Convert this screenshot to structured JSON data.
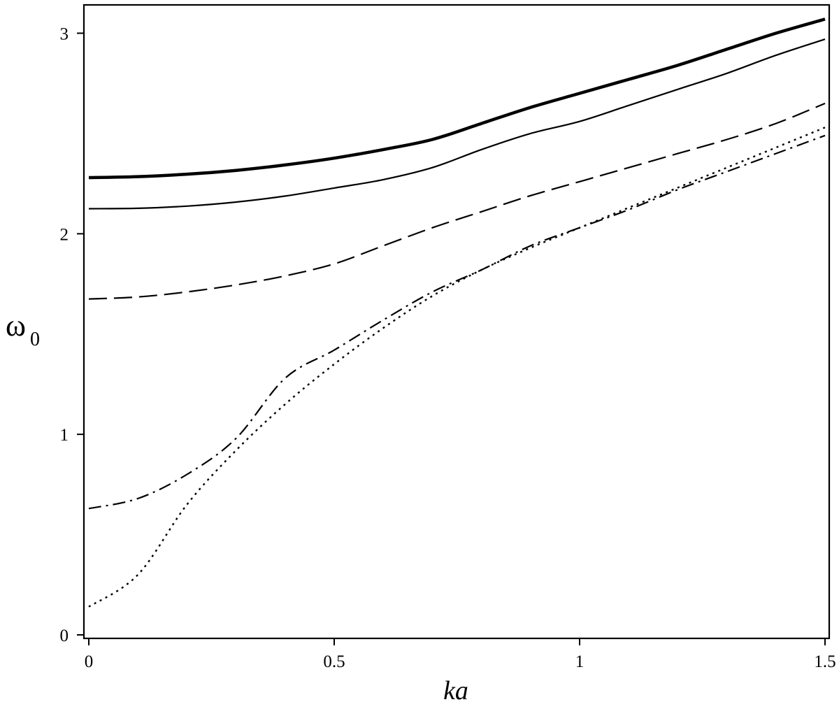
{
  "chart_data": {
    "type": "line",
    "title": "",
    "xlabel": "ka",
    "ylabel": "ω",
    "ylabel_subscript": "0",
    "xlim": [
      0,
      1.5
    ],
    "ylim": [
      0,
      3.13
    ],
    "xticks": [
      {
        "value": 0,
        "label": "0"
      },
      {
        "value": 0.5,
        "label": "0.5"
      },
      {
        "value": 1,
        "label": "1"
      },
      {
        "value": 1.5,
        "label": "1.5"
      }
    ],
    "yticks": [
      {
        "value": 0,
        "label": "0"
      },
      {
        "value": 1,
        "label": "1"
      },
      {
        "value": 2,
        "label": "2"
      },
      {
        "value": 3,
        "label": "3"
      }
    ],
    "grid": false,
    "legend": "none",
    "series": [
      {
        "style": "thick-solid",
        "x": [
          0.0,
          0.1,
          0.2,
          0.3,
          0.4,
          0.5,
          0.6,
          0.7,
          0.8,
          0.9,
          1.0,
          1.1,
          1.2,
          1.3,
          1.4,
          1.5
        ],
        "y": [
          2.28,
          2.285,
          2.297,
          2.316,
          2.343,
          2.377,
          2.42,
          2.47,
          2.55,
          2.63,
          2.7,
          2.77,
          2.84,
          2.92,
          3.0,
          3.07
        ]
      },
      {
        "style": "thin-solid",
        "x": [
          0.0,
          0.1,
          0.2,
          0.3,
          0.4,
          0.5,
          0.6,
          0.7,
          0.8,
          0.9,
          1.0,
          1.1,
          1.2,
          1.3,
          1.4,
          1.5
        ],
        "y": [
          2.125,
          2.127,
          2.138,
          2.158,
          2.188,
          2.228,
          2.27,
          2.33,
          2.42,
          2.5,
          2.56,
          2.64,
          2.72,
          2.8,
          2.89,
          2.97
        ]
      },
      {
        "style": "long-dash",
        "x": [
          0.0,
          0.1,
          0.2,
          0.3,
          0.4,
          0.5,
          0.6,
          0.7,
          0.8,
          0.9,
          1.0,
          1.1,
          1.2,
          1.3,
          1.4,
          1.5
        ],
        "y": [
          1.675,
          1.685,
          1.71,
          1.745,
          1.79,
          1.85,
          1.94,
          2.03,
          2.11,
          2.19,
          2.26,
          2.33,
          2.4,
          2.47,
          2.55,
          2.65
        ]
      },
      {
        "style": "dash-dot",
        "x": [
          0.0,
          0.1,
          0.2,
          0.3,
          0.4,
          0.5,
          0.6,
          0.7,
          0.8,
          0.9,
          1.0,
          1.1,
          1.2,
          1.3,
          1.4,
          1.5
        ],
        "y": [
          0.63,
          0.68,
          0.8,
          0.98,
          1.28,
          1.42,
          1.57,
          1.71,
          1.82,
          1.94,
          2.03,
          2.12,
          2.22,
          2.31,
          2.4,
          2.49
        ]
      },
      {
        "style": "dotted",
        "x": [
          0.0,
          0.1,
          0.2,
          0.3,
          0.4,
          0.5,
          0.6,
          0.7,
          0.8,
          0.9,
          1.0,
          1.1,
          1.2,
          1.3,
          1.4,
          1.5
        ],
        "y": [
          0.14,
          0.3,
          0.65,
          0.92,
          1.15,
          1.35,
          1.53,
          1.69,
          1.82,
          1.93,
          2.03,
          2.13,
          2.23,
          2.33,
          2.43,
          2.53
        ]
      }
    ]
  }
}
